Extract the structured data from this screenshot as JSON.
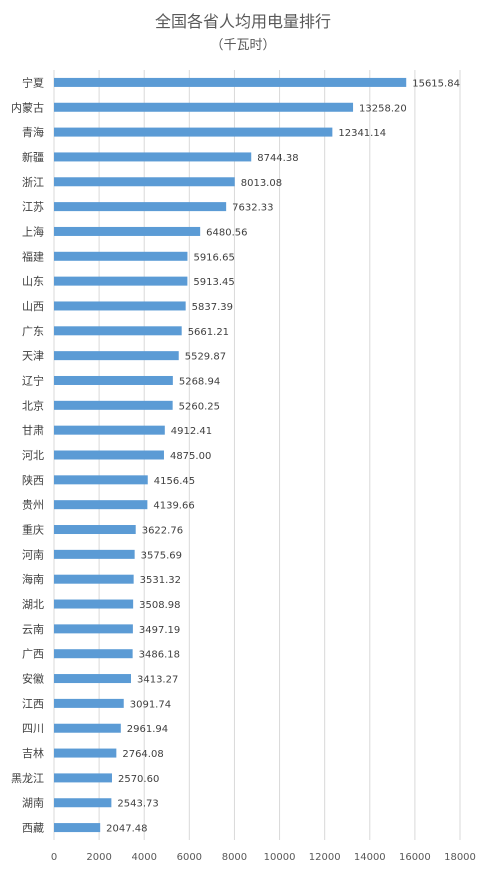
{
  "chart_data": {
    "type": "bar",
    "orientation": "horizontal",
    "title": "全国各省人均用电量排行",
    "subtitle": "（千瓦时）",
    "categories": [
      "宁夏",
      "内蒙古",
      "青海",
      "新疆",
      "浙江",
      "江苏",
      "上海",
      "福建",
      "山东",
      "山西",
      "广东",
      "天津",
      "辽宁",
      "北京",
      "甘肃",
      "河北",
      "陕西",
      "贵州",
      "重庆",
      "河南",
      "海南",
      "湖北",
      "云南",
      "广西",
      "安徽",
      "江西",
      "四川",
      "吉林",
      "黑龙江",
      "湖南",
      "西藏"
    ],
    "values": [
      15615.84,
      13258.2,
      12341.14,
      8744.38,
      8013.08,
      7632.33,
      6480.56,
      5916.65,
      5913.45,
      5837.39,
      5661.21,
      5529.87,
      5268.94,
      5260.25,
      4912.41,
      4875.0,
      4156.45,
      4139.66,
      3622.76,
      3575.69,
      3531.32,
      3508.98,
      3497.19,
      3486.18,
      3413.27,
      3091.74,
      2961.94,
      2764.08,
      2570.6,
      2543.73,
      2047.48
    ],
    "value_labels": [
      "15615.84",
      "13258.20",
      "12341.14",
      "8744.38",
      "8013.08",
      "7632.33",
      "6480.56",
      "5916.65",
      "5913.45",
      "5837.39",
      "5661.21",
      "5529.87",
      "5268.94",
      "5260.25",
      "4912.41",
      "4875.00",
      "4156.45",
      "4139.66",
      "3622.76",
      "3575.69",
      "3531.32",
      "3508.98",
      "3497.19",
      "3486.18",
      "3413.27",
      "3091.74",
      "2961.94",
      "2764.08",
      "2570.60",
      "2543.73",
      "2047.48"
    ],
    "xlim": [
      0,
      18000
    ],
    "x_ticks": [
      "0",
      "2000",
      "4000",
      "6000",
      "8000",
      "10000",
      "12000",
      "14000",
      "16000",
      "18000"
    ],
    "grid": true,
    "bar_color": "#5b9bd5"
  }
}
